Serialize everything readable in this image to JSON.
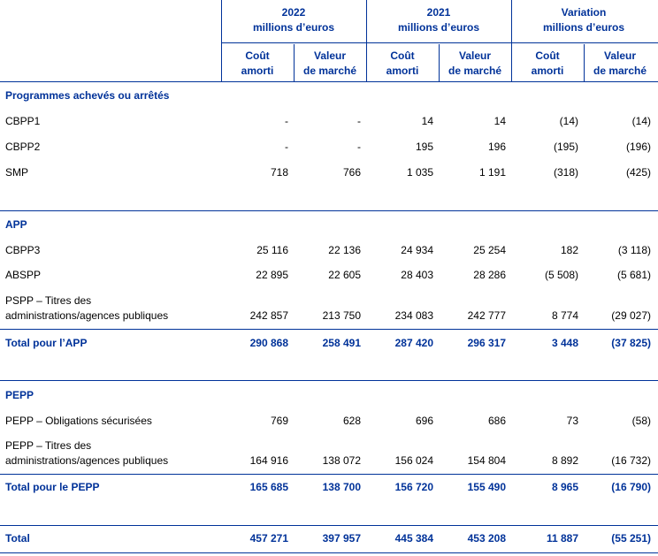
{
  "header": {
    "groups": [
      {
        "title": "2022",
        "unit": "millions d’euros"
      },
      {
        "title": "2021",
        "unit": "millions d’euros"
      },
      {
        "title": "Variation",
        "unit": "millions d’euros"
      }
    ],
    "subcolumns": [
      "Coût\namorti",
      "Valeur\nde marché",
      "Coût\namorti",
      "Valeur\nde marché",
      "Coût\namorti",
      "Valeur\nde marché"
    ]
  },
  "sections": [
    {
      "title": "Programmes achevés ou arrêtés",
      "rows": [
        {
          "label": "CBPP1",
          "values": [
            "-",
            "-",
            "14",
            "14",
            "(14)",
            "(14)"
          ]
        },
        {
          "label": "CBPP2",
          "values": [
            "-",
            "-",
            "195",
            "196",
            "(195)",
            "(196)"
          ]
        },
        {
          "label": "SMP",
          "values": [
            "718",
            "766",
            "1 035",
            "1 191",
            "(318)",
            "(425)"
          ]
        }
      ]
    },
    {
      "title": "APP",
      "rows": [
        {
          "label": "CBPP3",
          "values": [
            "25 116",
            "22 136",
            "24 934",
            "25 254",
            "182",
            "(3 118)"
          ]
        },
        {
          "label": "ABSPP",
          "values": [
            "22 895",
            "22 605",
            "28 403",
            "28 286",
            "(5 508)",
            "(5 681)"
          ]
        },
        {
          "label": "PSPP – Titres des\nadministrations/agences publiques",
          "values": [
            "242 857",
            "213 750",
            "234 083",
            "242 777",
            "8 774",
            "(29 027)"
          ]
        }
      ],
      "total": {
        "label": "Total pour l’APP",
        "values": [
          "290 868",
          "258 491",
          "287 420",
          "296 317",
          "3 448",
          "(37 825)"
        ]
      }
    },
    {
      "title": "PEPP",
      "rows": [
        {
          "label": "PEPP – Obligations sécurisées",
          "values": [
            "769",
            "628",
            "696",
            "686",
            "73",
            "(58)"
          ]
        },
        {
          "label": "PEPP – Titres des\nadministrations/agences publiques",
          "values": [
            "164 916",
            "138 072",
            "156 024",
            "154 804",
            "8 892",
            "(16 732)"
          ]
        }
      ],
      "total": {
        "label": "Total pour le PEPP",
        "values": [
          "165 685",
          "138 700",
          "156 720",
          "155 490",
          "8 965",
          "(16 790)"
        ]
      }
    }
  ],
  "total": {
    "label": "Total",
    "values": [
      "457 271",
      "397 957",
      "445 384",
      "453 208",
      "11 887",
      "(55 251)"
    ]
  }
}
